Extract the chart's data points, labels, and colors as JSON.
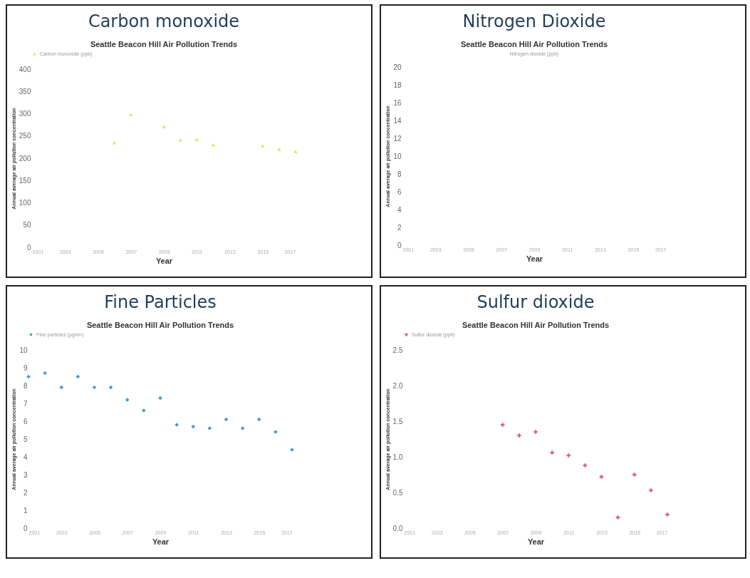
{
  "chart_data": [
    {
      "type": "scatter",
      "title": "Carbon monoxide",
      "subtitle": "Seattle Beacon Hill Air Pollution Trends",
      "xlabel": "Year",
      "ylabel": "Annual average air pollution concentration",
      "x": [
        2006,
        2007,
        2009,
        2010,
        2011,
        2012,
        2015,
        2016,
        2017
      ],
      "series": [
        {
          "name": "Carbon monoxide (ppb)",
          "color": "#e6e35a",
          "values": [
            235,
            298,
            271,
            241,
            242,
            230,
            228,
            220,
            215
          ]
        }
      ],
      "xlim": [
        2001,
        2017
      ],
      "xticks": [
        2001,
        2003,
        2005,
        2007,
        2009,
        2011,
        2013,
        2015,
        2017
      ],
      "ylim": [
        0,
        400
      ],
      "yticks": [
        0,
        50,
        100,
        150,
        200,
        250,
        300,
        350,
        400
      ],
      "legend": "top",
      "marker": "triangle"
    },
    {
      "type": "scatter",
      "title": "Nitrogen Dioxide",
      "subtitle": "Seattle Beacon Hill Air Pollution Trends",
      "xlabel": "Year",
      "ylabel": "Annual average air pollution concentration",
      "annotations": [
        "Nitrogen dioxide (ppb)"
      ],
      "xlim": [
        2001,
        2017
      ],
      "xticks": [
        2001,
        2003,
        2005,
        2007,
        2009,
        2011,
        2013,
        2015,
        2017
      ],
      "ylim": [
        0,
        20
      ],
      "yticks": [
        0,
        2,
        4,
        6,
        8,
        10,
        12,
        14,
        16,
        18,
        20
      ]
    },
    {
      "type": "scatter",
      "title": "Fine Particles",
      "subtitle": "Seattle Beacon Hill Air Pollution Trends",
      "xlabel": "Year",
      "ylabel": "Annual average air pollution concentration",
      "x": [
        2001,
        2002,
        2003,
        2004,
        2005,
        2006,
        2007,
        2008,
        2009,
        2010,
        2011,
        2012,
        2013,
        2014,
        2015,
        2016,
        2017
      ],
      "series": [
        {
          "name": "Fine particles (µg/m³)",
          "color": "#3c9ad8",
          "values": [
            8.5,
            8.7,
            7.9,
            8.5,
            7.9,
            7.9,
            7.2,
            6.6,
            7.3,
            5.8,
            5.7,
            5.6,
            6.1,
            5.6,
            6.1,
            5.4,
            4.4
          ]
        }
      ],
      "xlim": [
        2001,
        2017
      ],
      "xticks": [
        2001,
        2003,
        2005,
        2007,
        2009,
        2011,
        2013,
        2015,
        2017
      ],
      "ylim": [
        0,
        10
      ],
      "yticks": [
        0,
        1,
        2,
        3,
        4,
        5,
        6,
        7,
        8,
        9,
        10
      ],
      "legend": "top",
      "marker": "diamond"
    },
    {
      "type": "scatter",
      "title": "Sulfur dioxide",
      "subtitle": "Seattle Beacon Hill Air Pollution Trends",
      "xlabel": "Year",
      "ylabel": "Annual average air pollution concentration",
      "x": [
        2007,
        2008,
        2009,
        2010,
        2011,
        2012,
        2013,
        2014,
        2015,
        2016,
        2017
      ],
      "series": [
        {
          "name": "Sulfur dioxide (ppb)",
          "color": "#e0607a",
          "values": [
            1.45,
            1.3,
            1.35,
            1.06,
            1.02,
            0.88,
            0.72,
            0.15,
            0.75,
            0.53,
            0.19
          ]
        }
      ],
      "xlim": [
        2001,
        2017
      ],
      "xticks": [
        2001,
        2003,
        2005,
        2007,
        2009,
        2011,
        2013,
        2015,
        2017
      ],
      "ylim": [
        0,
        2.5
      ],
      "yticks": [
        {
          "value": 0,
          "label": "0.0"
        },
        0.5,
        {
          "value": 1,
          "label": "1.0"
        },
        1.5,
        {
          "value": 2,
          "label": "2.0"
        },
        2.5
      ],
      "legend": "top",
      "marker": "cross"
    }
  ]
}
